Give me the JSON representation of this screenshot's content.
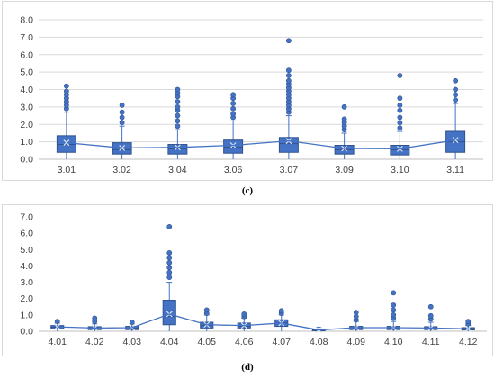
{
  "chart_data": [
    {
      "type": "box",
      "panel_label": "(c)",
      "categories": [
        "3.01",
        "3.02",
        "3.04",
        "3.06",
        "3.07",
        "3.09",
        "3.10",
        "3.11"
      ],
      "yticks": [
        "0.0",
        "1.0",
        "2.0",
        "3.0",
        "4.0",
        "5.0",
        "6.0",
        "7.0",
        "8.0"
      ],
      "ylim": [
        0,
        8
      ],
      "grid": true,
      "color": "#4472c4",
      "boxes": [
        {
          "q1": 0.4,
          "median": 0.85,
          "q3": 1.35,
          "mean": 0.95,
          "whisker_low": 0.0,
          "whisker_high": 2.7
        },
        {
          "q1": 0.3,
          "median": 0.55,
          "q3": 0.95,
          "mean": 0.65,
          "whisker_low": 0.0,
          "whisker_high": 1.9
        },
        {
          "q1": 0.3,
          "median": 0.6,
          "q3": 0.85,
          "mean": 0.68,
          "whisker_low": 0.0,
          "whisker_high": 1.7
        },
        {
          "q1": 0.35,
          "median": 0.7,
          "q3": 1.1,
          "mean": 0.8,
          "whisker_low": 0.0,
          "whisker_high": 2.2
        },
        {
          "q1": 0.4,
          "median": 0.9,
          "q3": 1.25,
          "mean": 1.05,
          "whisker_low": 0.0,
          "whisker_high": 2.5
        },
        {
          "q1": 0.3,
          "median": 0.55,
          "q3": 0.8,
          "mean": 0.62,
          "whisker_low": 0.0,
          "whisker_high": 1.5
        },
        {
          "q1": 0.25,
          "median": 0.55,
          "q3": 0.8,
          "mean": 0.6,
          "whisker_low": 0.0,
          "whisker_high": 1.6
        },
        {
          "q1": 0.4,
          "median": 1.0,
          "q3": 1.6,
          "mean": 1.1,
          "whisker_low": 0.0,
          "whisker_high": 3.2
        }
      ],
      "outliers": [
        [
          2.9,
          3.1,
          3.3,
          3.5,
          3.7,
          3.9,
          4.2
        ],
        [
          2.1,
          2.4,
          2.7,
          3.1
        ],
        [
          1.9,
          2.2,
          2.5,
          2.8,
          3.0,
          3.3,
          3.6,
          3.8,
          4.0
        ],
        [
          2.4,
          2.6,
          2.9,
          3.2,
          3.5,
          3.7
        ],
        [
          2.7,
          2.9,
          3.1,
          3.3,
          3.5,
          3.7,
          3.9,
          4.1,
          4.3,
          4.5,
          4.8,
          5.1,
          6.8
        ],
        [
          1.7,
          1.9,
          2.1,
          2.3,
          3.0
        ],
        [
          1.8,
          2.1,
          2.4,
          2.8,
          3.1,
          3.5,
          4.8
        ],
        [
          3.4,
          3.7,
          4.0,
          4.5
        ]
      ]
    },
    {
      "type": "box",
      "panel_label": "(d)",
      "categories": [
        "4.01",
        "4.02",
        "4.03",
        "4.04",
        "4.05",
        "4.06",
        "4.07",
        "4.08",
        "4.09",
        "4.10",
        "4.11",
        "4.12"
      ],
      "yticks": [
        "0.0",
        "1.0",
        "2.0",
        "3.0",
        "4.0",
        "5.0",
        "6.0",
        "7.0"
      ],
      "ylim": [
        0,
        7
      ],
      "grid": false,
      "color": "#4472c4",
      "boxes": [
        {
          "q1": 0.15,
          "median": 0.25,
          "q3": 0.35,
          "mean": 0.27,
          "whisker_low": 0.0,
          "whisker_high": 0.5
        },
        {
          "q1": 0.1,
          "median": 0.18,
          "q3": 0.28,
          "mean": 0.2,
          "whisker_low": 0.0,
          "whisker_high": 0.45
        },
        {
          "q1": 0.1,
          "median": 0.2,
          "q3": 0.3,
          "mean": 0.22,
          "whisker_low": 0.0,
          "whisker_high": 0.45
        },
        {
          "q1": 0.4,
          "median": 0.9,
          "q3": 1.9,
          "mean": 1.05,
          "whisker_low": 0.0,
          "whisker_high": 3.0
        },
        {
          "q1": 0.2,
          "median": 0.35,
          "q3": 0.55,
          "mean": 0.4,
          "whisker_low": 0.0,
          "whisker_high": 1.0
        },
        {
          "q1": 0.2,
          "median": 0.3,
          "q3": 0.5,
          "mean": 0.35,
          "whisker_low": 0.0,
          "whisker_high": 0.8
        },
        {
          "q1": 0.3,
          "median": 0.5,
          "q3": 0.7,
          "mean": 0.5,
          "whisker_low": 0.0,
          "whisker_high": 1.0
        },
        {
          "q1": 0.03,
          "median": 0.07,
          "q3": 0.12,
          "mean": 0.08,
          "whisker_low": 0.0,
          "whisker_high": 0.25
        },
        {
          "q1": 0.1,
          "median": 0.2,
          "q3": 0.3,
          "mean": 0.22,
          "whisker_low": 0.0,
          "whisker_high": 0.6
        },
        {
          "q1": 0.1,
          "median": 0.2,
          "q3": 0.3,
          "mean": 0.22,
          "whisker_low": 0.0,
          "whisker_high": 0.6
        },
        {
          "q1": 0.1,
          "median": 0.18,
          "q3": 0.28,
          "mean": 0.2,
          "whisker_low": 0.0,
          "whisker_high": 0.55
        },
        {
          "q1": 0.08,
          "median": 0.15,
          "q3": 0.22,
          "mean": 0.15,
          "whisker_low": 0.0,
          "whisker_high": 0.35
        }
      ],
      "outliers": [
        [
          0.6
        ],
        [
          0.6,
          0.8
        ],
        [
          0.55
        ],
        [
          3.3,
          3.6,
          3.9,
          4.2,
          4.5,
          4.8,
          6.4
        ],
        [
          1.1,
          1.3
        ],
        [
          0.9,
          1.05
        ],
        [
          1.1,
          1.25
        ],
        [],
        [
          0.7,
          0.9,
          1.15
        ],
        [
          0.8,
          1.0,
          1.3,
          1.6,
          2.35
        ],
        [
          0.75,
          0.95,
          1.5
        ],
        [
          0.45,
          0.6
        ]
      ]
    }
  ]
}
